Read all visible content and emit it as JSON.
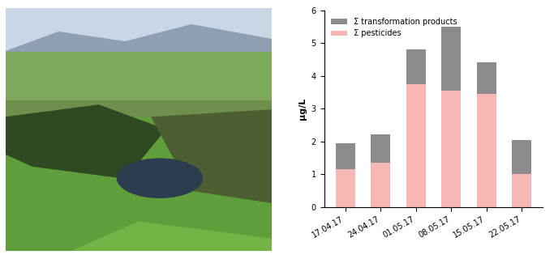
{
  "chart_data": {
    "type": "bar",
    "stacked": true,
    "y_label": "µg/L",
    "categories": [
      "17.04.17",
      "24.04.17",
      "01.05.17",
      "08.05.17",
      "15.05.17",
      "22.05.17"
    ],
    "series": [
      {
        "name": "Σ pesticides",
        "color": "#f7b7b5",
        "values": [
          1.17,
          1.35,
          3.75,
          3.55,
          3.45,
          1.0
        ]
      },
      {
        "name": "Σ transformation products",
        "color": "#8c8c8c",
        "values": [
          0.78,
          0.87,
          1.05,
          1.95,
          0.97,
          1.05
        ]
      }
    ],
    "ylim": [
      0,
      6
    ],
    "yticks": [
      0,
      1,
      2,
      3,
      4,
      5,
      6
    ],
    "grid": false,
    "legend": "upper left"
  }
}
